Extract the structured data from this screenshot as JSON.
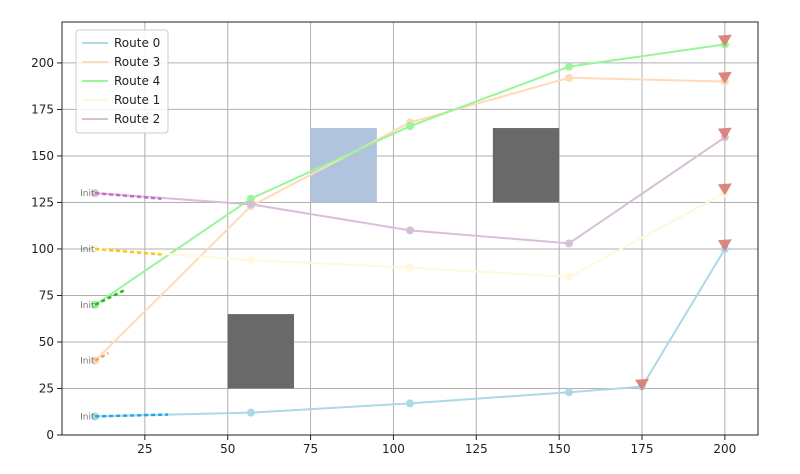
{
  "chart_data": {
    "type": "line",
    "title": "",
    "xlabel": "",
    "ylabel": "",
    "xlim": [
      0,
      210
    ],
    "ylim": [
      0,
      222
    ],
    "xticks": [
      25,
      50,
      75,
      100,
      125,
      150,
      175,
      200
    ],
    "yticks": [
      0,
      25,
      50,
      75,
      100,
      125,
      150,
      175,
      200
    ],
    "grid": true,
    "legend_position": "top-left",
    "start_label": "Init",
    "legend_order": [
      "Route 0",
      "Route 3",
      "Route 4",
      "Route 1",
      "Route 2"
    ],
    "series": [
      {
        "name": "Route 0",
        "color": "#add8e6",
        "start_color": "#1ea7e6",
        "x": [
          10,
          57,
          105,
          153,
          175,
          200
        ],
        "y": [
          10,
          12,
          17,
          23,
          26,
          100
        ],
        "start_segment": [
          [
            10,
            10
          ],
          [
            32,
            11
          ]
        ],
        "end_markers": [
          [
            175,
            27
          ],
          [
            200,
            102
          ]
        ]
      },
      {
        "name": "Route 3",
        "color": "#ffdab9",
        "start_color": "#f0a060",
        "x": [
          10,
          57,
          105,
          153,
          200
        ],
        "y": [
          40,
          123,
          168,
          192,
          190
        ],
        "start_segment": [
          [
            10,
            40
          ],
          [
            14,
            44
          ]
        ],
        "end_markers": [
          [
            200,
            192
          ]
        ]
      },
      {
        "name": "Route 4",
        "color": "#98f598",
        "start_color": "#22bb22",
        "x": [
          10,
          57,
          105,
          153,
          200
        ],
        "y": [
          70,
          127,
          166,
          198,
          210
        ],
        "start_segment": [
          [
            10,
            70
          ],
          [
            19,
            78
          ]
        ],
        "end_markers": [
          [
            200,
            212
          ]
        ]
      },
      {
        "name": "Route 1",
        "color": "#fff8dc",
        "start_color": "#f5c518",
        "x": [
          10,
          57,
          105,
          153,
          200
        ],
        "y": [
          100,
          94,
          90,
          85,
          130
        ],
        "start_segment": [
          [
            10,
            100
          ],
          [
            30,
            97
          ]
        ],
        "end_markers": [
          [
            200,
            132
          ]
        ]
      },
      {
        "name": "Route 2",
        "color": "#d8bfd8",
        "start_color": "#cc66cc",
        "x": [
          10,
          57,
          105,
          153,
          200
        ],
        "y": [
          130,
          124,
          110,
          103,
          160
        ],
        "start_segment": [
          [
            10,
            130
          ],
          [
            30,
            127
          ]
        ],
        "end_markers": [
          [
            200,
            162
          ]
        ]
      }
    ],
    "obstacles": [
      {
        "x": [
          50,
          70
        ],
        "y": [
          25,
          65
        ],
        "color": "#696969"
      },
      {
        "x": [
          75,
          95
        ],
        "y": [
          125,
          165
        ],
        "color": "#b0c4de"
      },
      {
        "x": [
          130,
          150
        ],
        "y": [
          125,
          165
        ],
        "color": "#696969"
      }
    ],
    "end_marker_color": "#d87b73"
  }
}
